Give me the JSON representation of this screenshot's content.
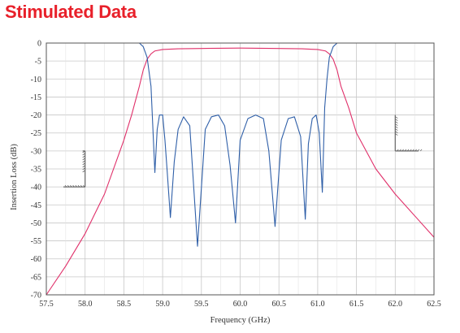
{
  "title": "Stimulated Data",
  "colors": {
    "insertion": "#e0306a",
    "return": "#2f5fa8",
    "grid": "#c8c8c8",
    "title": "#e8202a",
    "mask": "#666666"
  },
  "chart_data": {
    "type": "line",
    "title": "Stimulated Data",
    "xlabel": "Frequency (GHz)",
    "ylabel": "Insertion Loss (dB)",
    "xlim": [
      57.5,
      62.5
    ],
    "ylim": [
      -70,
      0
    ],
    "x_ticks": [
      "57.5",
      "58.0",
      "58.5",
      "59.0",
      "59.5",
      "60.0",
      "60.5",
      "61.0",
      "61.5",
      "62.0",
      "62.5"
    ],
    "y_ticks": [
      "0",
      "-5",
      "-10",
      "-15",
      "-20",
      "-25",
      "-30",
      "-35",
      "-40",
      "-45",
      "-50",
      "-55",
      "-60",
      "-65",
      "-70"
    ],
    "grid": true,
    "series": [
      {
        "key": "insertion",
        "x": [
          57.5,
          57.75,
          58.0,
          58.25,
          58.5,
          58.6,
          58.7,
          58.75,
          58.8,
          58.85,
          58.9,
          59.0,
          59.2,
          59.5,
          60.0,
          60.5,
          60.8,
          61.0,
          61.1,
          61.15,
          61.2,
          61.25,
          61.3,
          61.4,
          61.5,
          61.75,
          62.0,
          62.25,
          62.5
        ],
        "y": [
          -70,
          -62,
          -53,
          -42,
          -27,
          -20,
          -12,
          -7.5,
          -4.5,
          -3,
          -2.2,
          -1.8,
          -1.6,
          -1.5,
          -1.4,
          -1.5,
          -1.6,
          -1.8,
          -2.2,
          -3,
          -4.5,
          -7.5,
          -12,
          -18,
          -25,
          -35,
          -42,
          -48,
          -54
        ]
      },
      {
        "key": "return",
        "x": [
          58.7,
          58.75,
          58.8,
          58.85,
          58.9,
          58.93,
          58.96,
          59.0,
          59.03,
          59.06,
          59.1,
          59.15,
          59.2,
          59.27,
          59.35,
          59.45,
          59.55,
          59.63,
          59.72,
          59.8,
          59.87,
          59.94,
          60.0,
          60.1,
          60.2,
          60.3,
          60.37,
          60.45,
          60.53,
          60.62,
          60.7,
          60.78,
          60.84,
          60.88,
          60.93,
          60.98,
          61.02,
          61.06,
          61.09,
          61.12,
          61.15,
          61.2,
          61.25,
          61.3
        ],
        "y": [
          0,
          -1,
          -4,
          -12,
          -36,
          -24,
          -20,
          -20,
          -27,
          -36,
          -48.5,
          -33,
          -24,
          -20.5,
          -23,
          -56.5,
          -24,
          -20.5,
          -20,
          -23,
          -34,
          -50,
          -27,
          -21,
          -20,
          -21,
          -30,
          -51,
          -27,
          -21,
          -20.5,
          -26,
          -49,
          -28,
          -21,
          -20,
          -25,
          -41.5,
          -18,
          -10,
          -4,
          -1,
          0,
          0
        ]
      }
    ],
    "mask": [
      {
        "x": 57.72,
        "y": -40
      },
      {
        "x": 58.0,
        "y": -40
      },
      {
        "x": 58.0,
        "y": -30
      },
      {
        "x": 62.0,
        "y": -30
      },
      {
        "x": 62.0,
        "y": -20
      },
      {
        "x": 62.3,
        "y": -30
      }
    ]
  }
}
